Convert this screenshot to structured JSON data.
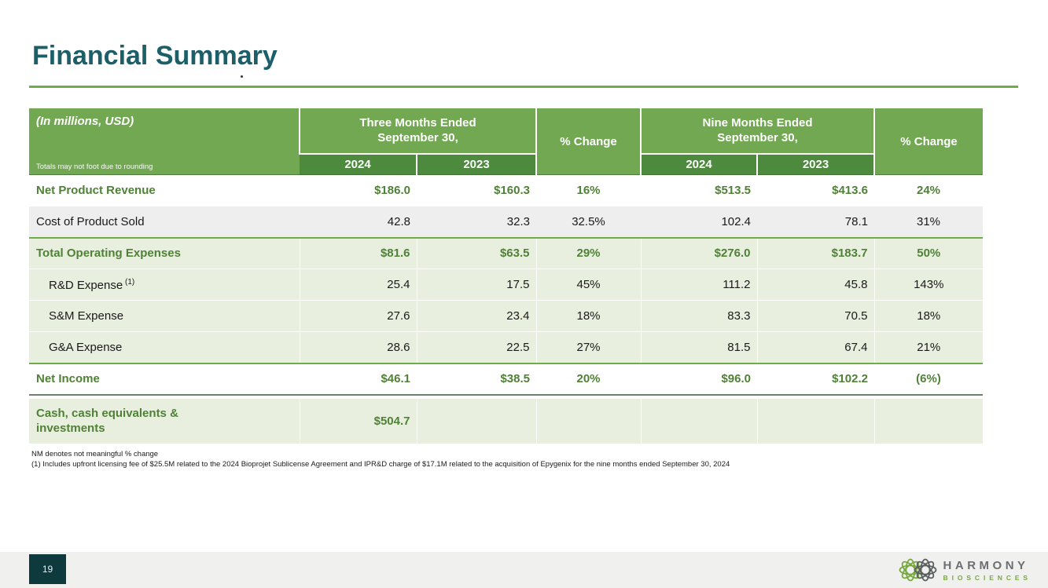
{
  "slide": {
    "title": "Financial Summary",
    "page_number": "19",
    "footnotes": [
      "NM denotes not meaningful % change",
      "(1) Includes upfront licensing fee of $25.5M related to the 2024 Bioprojet Sublicense Agreement and IPR&D charge of $17.1M related to the acquisition of Epygenix for the nine months ended September 30, 2024"
    ]
  },
  "logo": {
    "line1": "HARMONY",
    "line2": "BIOSCIENCES"
  },
  "colors": {
    "title_teal": "#1C5F69",
    "accent_green": "#70AD47",
    "header_green": "#72A851",
    "header_dark_green": "#4D8A3E",
    "row_light_green": "#E9EFDF",
    "row_gray": "#EEEEEE",
    "emphasis_text_green": "#4F8136",
    "footer_strip": "#F0F0EF",
    "page_box_teal": "#0E3A3D"
  },
  "table": {
    "header": {
      "corner_title": "(In millions, USD)",
      "corner_note": "Totals may not foot due to rounding",
      "pct_change_label": "% Change",
      "period_groups": [
        {
          "line1": "Three Months Ended",
          "line2": "September 30,",
          "years": [
            "2024",
            "2023"
          ]
        },
        {
          "line1": "Nine Months Ended",
          "line2": "September 30,",
          "years": [
            "2024",
            "2023"
          ]
        }
      ]
    },
    "rows": [
      {
        "label": "Net Product Revenue",
        "emphasis": true,
        "bg": "white",
        "values": [
          "$186.0",
          "$160.3",
          "16%",
          "$513.5",
          "$413.6",
          "24%"
        ]
      },
      {
        "label": "Cost of Product Sold",
        "emphasis": false,
        "bg": "gray",
        "values": [
          "42.8",
          "32.3",
          "32.5%",
          "102.4",
          "78.1",
          "31%"
        ]
      },
      {
        "label": "Total Operating Expenses",
        "emphasis": true,
        "bg": "green",
        "rule_top": true,
        "values": [
          "$81.6",
          "$63.5",
          "29%",
          "$276.0",
          "$183.7",
          "50%"
        ]
      },
      {
        "label": "R&D Expense",
        "sup": "(1)",
        "emphasis": false,
        "bg": "green",
        "indent": true,
        "values": [
          "25.4",
          "17.5",
          "45%",
          "111.2",
          "45.8",
          "143%"
        ]
      },
      {
        "label": "S&M Expense",
        "emphasis": false,
        "bg": "green",
        "indent": true,
        "values": [
          "27.6",
          "23.4",
          "18%",
          "83.3",
          "70.5",
          "18%"
        ]
      },
      {
        "label": "G&A Expense",
        "emphasis": false,
        "bg": "green",
        "indent": true,
        "values": [
          "28.6",
          "22.5",
          "27%",
          "81.5",
          "67.4",
          "21%"
        ]
      },
      {
        "label": "Net Income",
        "emphasis": true,
        "bg": "white",
        "rule_top": true,
        "rule_dark_bottom": true,
        "values": [
          "$46.1",
          "$38.5",
          "20%",
          "$96.0",
          "$102.2",
          "(6%)"
        ]
      },
      {
        "label": "Cash, cash equivalents & investments",
        "emphasis": true,
        "bg": "green",
        "gap_before": true,
        "tall": true,
        "wrap": true,
        "values": [
          "$504.7",
          "",
          "",
          "",
          "",
          ""
        ]
      }
    ]
  }
}
